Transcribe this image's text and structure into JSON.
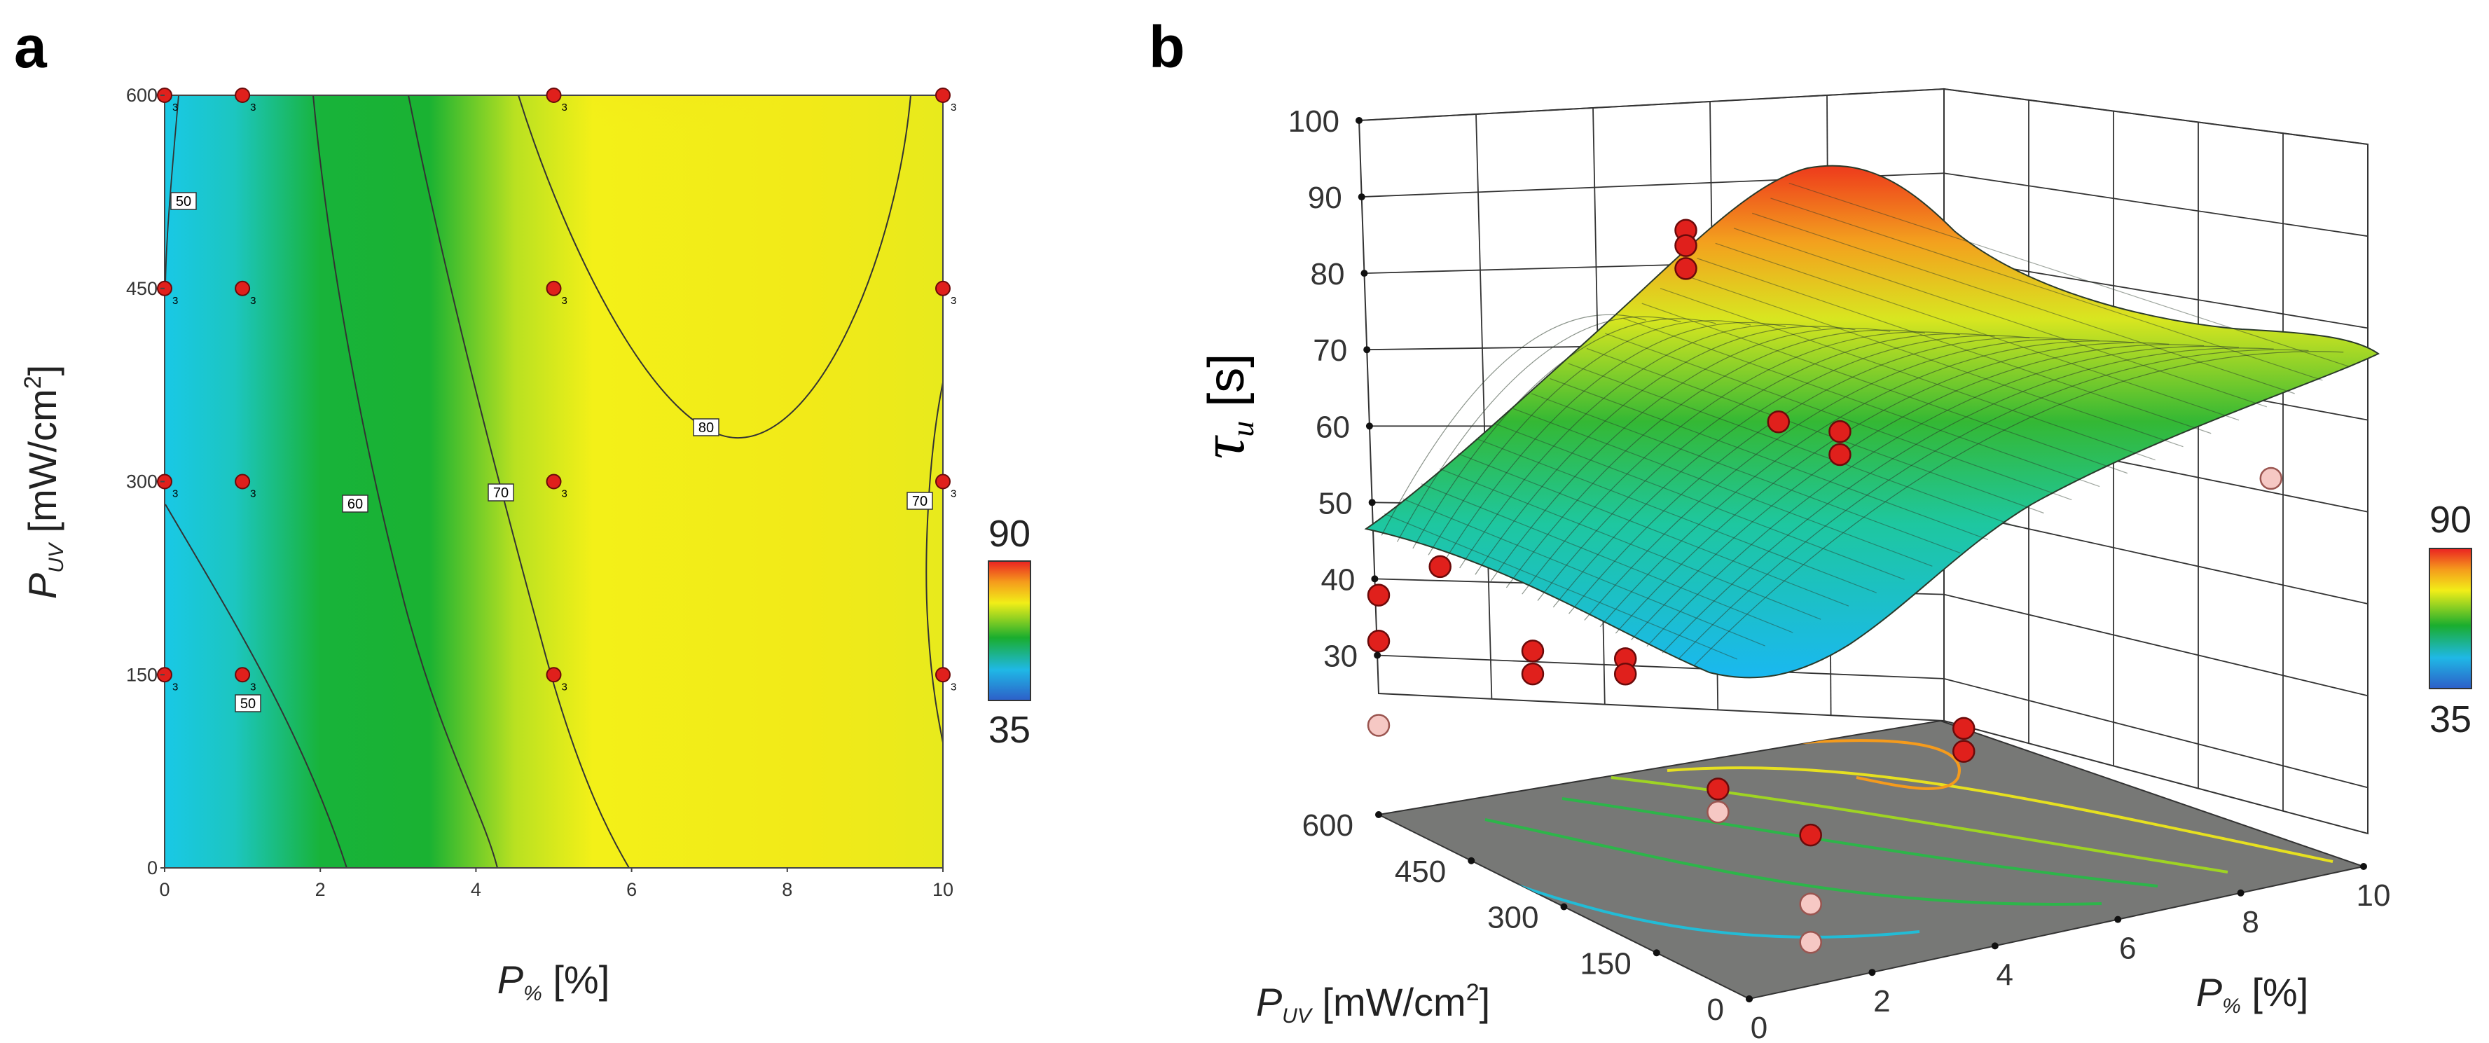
{
  "chart_data": [
    {
      "panel": "a",
      "type": "heatmap",
      "subtype": "contour",
      "xlabel": {
        "main": "P",
        "sub": "%",
        "unit": "[%]"
      },
      "ylabel": {
        "main": "P",
        "sub": "UV",
        "unit": "[mW/cm",
        "sup": "2",
        "close": "]"
      },
      "xlim": [
        0,
        10
      ],
      "ylim": [
        0,
        600
      ],
      "x_ticks": [
        "0",
        "2",
        "4",
        "6",
        "8",
        "10"
      ],
      "y_ticks": [
        "0",
        "150",
        "300",
        "450",
        "600"
      ],
      "colorbar": {
        "min": "35",
        "max": "90"
      },
      "contour_labels": [
        "50",
        "50",
        "60",
        "70",
        "70",
        "80"
      ],
      "design_points": [
        {
          "x": 0,
          "y": 150,
          "n": "3"
        },
        {
          "x": 0,
          "y": 300,
          "n": "3"
        },
        {
          "x": 0,
          "y": 450,
          "n": "3"
        },
        {
          "x": 0,
          "y": 600,
          "n": "3"
        },
        {
          "x": 1,
          "y": 150,
          "n": "3"
        },
        {
          "x": 1,
          "y": 300,
          "n": "3"
        },
        {
          "x": 1,
          "y": 450,
          "n": "3"
        },
        {
          "x": 1,
          "y": 600,
          "n": "3"
        },
        {
          "x": 5,
          "y": 150,
          "n": "3"
        },
        {
          "x": 5,
          "y": 300,
          "n": "3"
        },
        {
          "x": 5,
          "y": 450,
          "n": "3"
        },
        {
          "x": 5,
          "y": 600,
          "n": "3"
        },
        {
          "x": 10,
          "y": 150,
          "n": "3"
        },
        {
          "x": 10,
          "y": 300,
          "n": "3"
        },
        {
          "x": 10,
          "y": 450,
          "n": "3"
        },
        {
          "x": 10,
          "y": 600,
          "n": "3"
        }
      ]
    },
    {
      "panel": "b",
      "type": "surface",
      "zlabel": {
        "main": "τ",
        "sub": "u",
        "unit": "[s]"
      },
      "xlabel": {
        "main": "P",
        "sub": "%",
        "unit": "[%]"
      },
      "ylabel": {
        "main": "P",
        "sub": "UV",
        "unit": "[mW/cm",
        "sup": "2",
        "close": "]"
      },
      "z_ticks": [
        "30",
        "40",
        "50",
        "60",
        "70",
        "80",
        "90",
        "100"
      ],
      "x_ticks": [
        "0",
        "2",
        "4",
        "6",
        "8",
        "10"
      ],
      "y_ticks": [
        "0",
        "150",
        "300",
        "450",
        "600"
      ],
      "colorbar": {
        "min": "35",
        "max": "90"
      },
      "observations": [
        {
          "p": 0,
          "uv": 600,
          "tau": 50,
          "above": true
        },
        {
          "p": 0,
          "uv": 600,
          "tau": 44,
          "above": true
        },
        {
          "p": 0,
          "uv": 600,
          "tau": 33,
          "above": false
        },
        {
          "p": 1,
          "uv": 600,
          "tau": 52,
          "above": true
        },
        {
          "p": 1,
          "uv": 450,
          "tau": 47,
          "above": true
        },
        {
          "p": 1,
          "uv": 450,
          "tau": 44,
          "above": true
        },
        {
          "p": 1,
          "uv": 300,
          "tau": 52,
          "above": true
        },
        {
          "p": 1,
          "uv": 300,
          "tau": 50,
          "above": true
        },
        {
          "p": 1,
          "uv": 150,
          "tau": 41,
          "above": true
        },
        {
          "p": 1,
          "uv": 150,
          "tau": 38,
          "above": false
        },
        {
          "p": 1,
          "uv": 0,
          "tau": 41,
          "above": true
        },
        {
          "p": 1,
          "uv": 0,
          "tau": 32,
          "above": false
        },
        {
          "p": 1,
          "uv": 0,
          "tau": 27,
          "above": false
        },
        {
          "p": 5,
          "uv": 600,
          "tau": 89,
          "above": true
        },
        {
          "p": 5,
          "uv": 600,
          "tau": 87,
          "above": true
        },
        {
          "p": 5,
          "uv": 600,
          "tau": 84,
          "above": true
        },
        {
          "p": 5,
          "uv": 150,
          "tau": 42,
          "above": true
        },
        {
          "p": 5,
          "uv": 150,
          "tau": 39,
          "above": true
        },
        {
          "p": 5,
          "uv": 450,
          "tau": 70,
          "above": true
        },
        {
          "p": 6,
          "uv": 450,
          "tau": 67,
          "above": true
        },
        {
          "p": 6,
          "uv": 450,
          "tau": 64,
          "above": true
        },
        {
          "p": 10,
          "uv": 150,
          "tau": 66,
          "above": false
        }
      ]
    }
  ]
}
